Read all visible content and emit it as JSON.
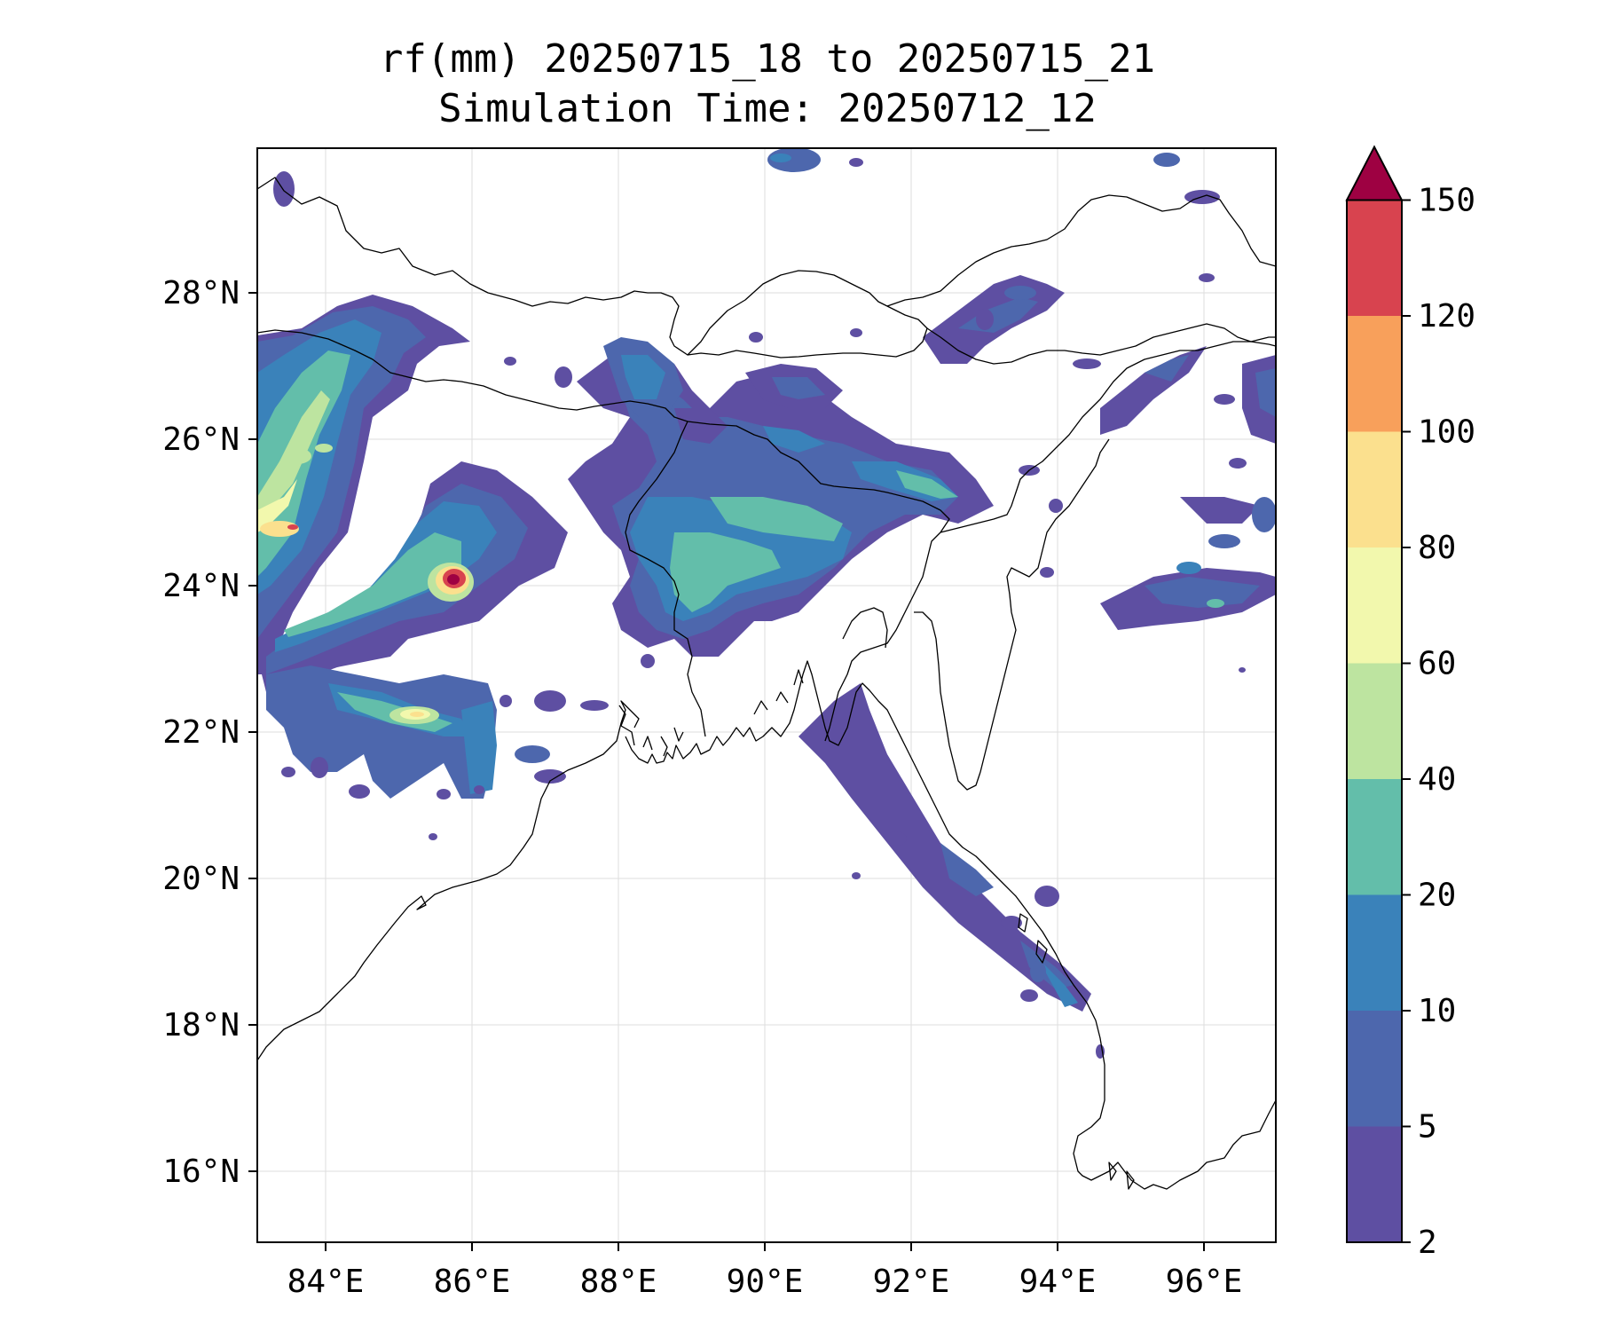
{
  "title": {
    "line1": "rf(mm) 20250715_18 to 20250715_21",
    "line2": "Simulation Time: 20250712_12"
  },
  "map": {
    "lon_ticks": [
      "84°E",
      "86°E",
      "88°E",
      "90°E",
      "92°E",
      "94°E",
      "96°E"
    ],
    "lat_ticks": [
      "28°N",
      "26°N",
      "24°N",
      "22°N",
      "20°N",
      "18°N",
      "16°N"
    ],
    "gridlines": true,
    "colors": {
      "coastline": "#000000",
      "gridline": "#dddddd"
    }
  },
  "colorbar": {
    "ticks": [
      "150",
      "120",
      "100",
      "80",
      "60",
      "40",
      "20",
      "10",
      "5",
      "2"
    ],
    "bins": [
      {
        "label": "2-5",
        "color": "#5e4fa2"
      },
      {
        "label": "5-10",
        "color": "#4d67ad"
      },
      {
        "label": "10-20",
        "color": "#3a82ba"
      },
      {
        "label": "20-40",
        "color": "#63beaa"
      },
      {
        "label": "40-60",
        "color": "#bde4a0"
      },
      {
        "label": "60-80",
        "color": "#f2f8ad"
      },
      {
        "label": "80-100",
        "color": "#fbe08e"
      },
      {
        "label": "100-120",
        "color": "#f8a05b"
      },
      {
        "label": "120-150",
        "color": "#d8434f"
      },
      {
        "label": ">150",
        "color": "#9e0142"
      }
    ],
    "extend": "max"
  }
}
